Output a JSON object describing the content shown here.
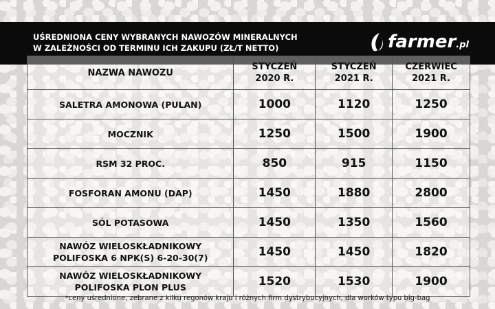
{
  "header": {
    "title_line1": "UŚREDNIONA CENY WYBRANYCH NAWOZÓW MINERALNYCH",
    "title_line2": "W ZALEŻNOŚCI OD TERMINU ICH ZAKUPU (ZŁ/T NETTO)",
    "logo": "farmer.pl",
    "logo_main": "farmer",
    "logo_suffix": ".pl",
    "logo_icon": "leaf-icon"
  },
  "table": {
    "columns": [
      {
        "line1": "NAZWA NAWOZU",
        "line2": ""
      },
      {
        "line1": "STYCZEŃ",
        "line2": "2020 R."
      },
      {
        "line1": "STYCZEŃ",
        "line2": "2021 R."
      },
      {
        "line1": "CZERWIEC",
        "line2": "2021 R."
      }
    ],
    "rows": [
      {
        "name1": "SALETRA AMONOWA (PULAN)",
        "name2": "",
        "v": [
          "1000",
          "1120",
          "1250"
        ]
      },
      {
        "name1": "MOCZNIK",
        "name2": "",
        "v": [
          "1250",
          "1500",
          "1900"
        ]
      },
      {
        "name1": "RSM 32 PROC.",
        "name2": "",
        "v": [
          "850",
          "915",
          "1150"
        ]
      },
      {
        "name1": "FOSFORAN AMONU (DAP)",
        "name2": "",
        "v": [
          "1450",
          "1880",
          "2800"
        ]
      },
      {
        "name1": "SÓL POTASOWA",
        "name2": "",
        "v": [
          "1450",
          "1350",
          "1560"
        ]
      },
      {
        "name1": "NAWÓZ WIELOSKŁADNIKOWY",
        "name2": "POLIFOSKA 6 NPK(S) 6-20-30(7)",
        "v": [
          "1450",
          "1450",
          "1820"
        ]
      },
      {
        "name1": "NAWÓZ WIELOSKŁADNIKOWY",
        "name2": "POLIFOSKA PLON PLUS",
        "v": [
          "1520",
          "1530",
          "1900"
        ]
      }
    ]
  },
  "footer": "*ceny uśrednione, zebrane z kilku regonów kraju i różnych firm dystrybucyjnych, dla worków typu big-bag"
}
